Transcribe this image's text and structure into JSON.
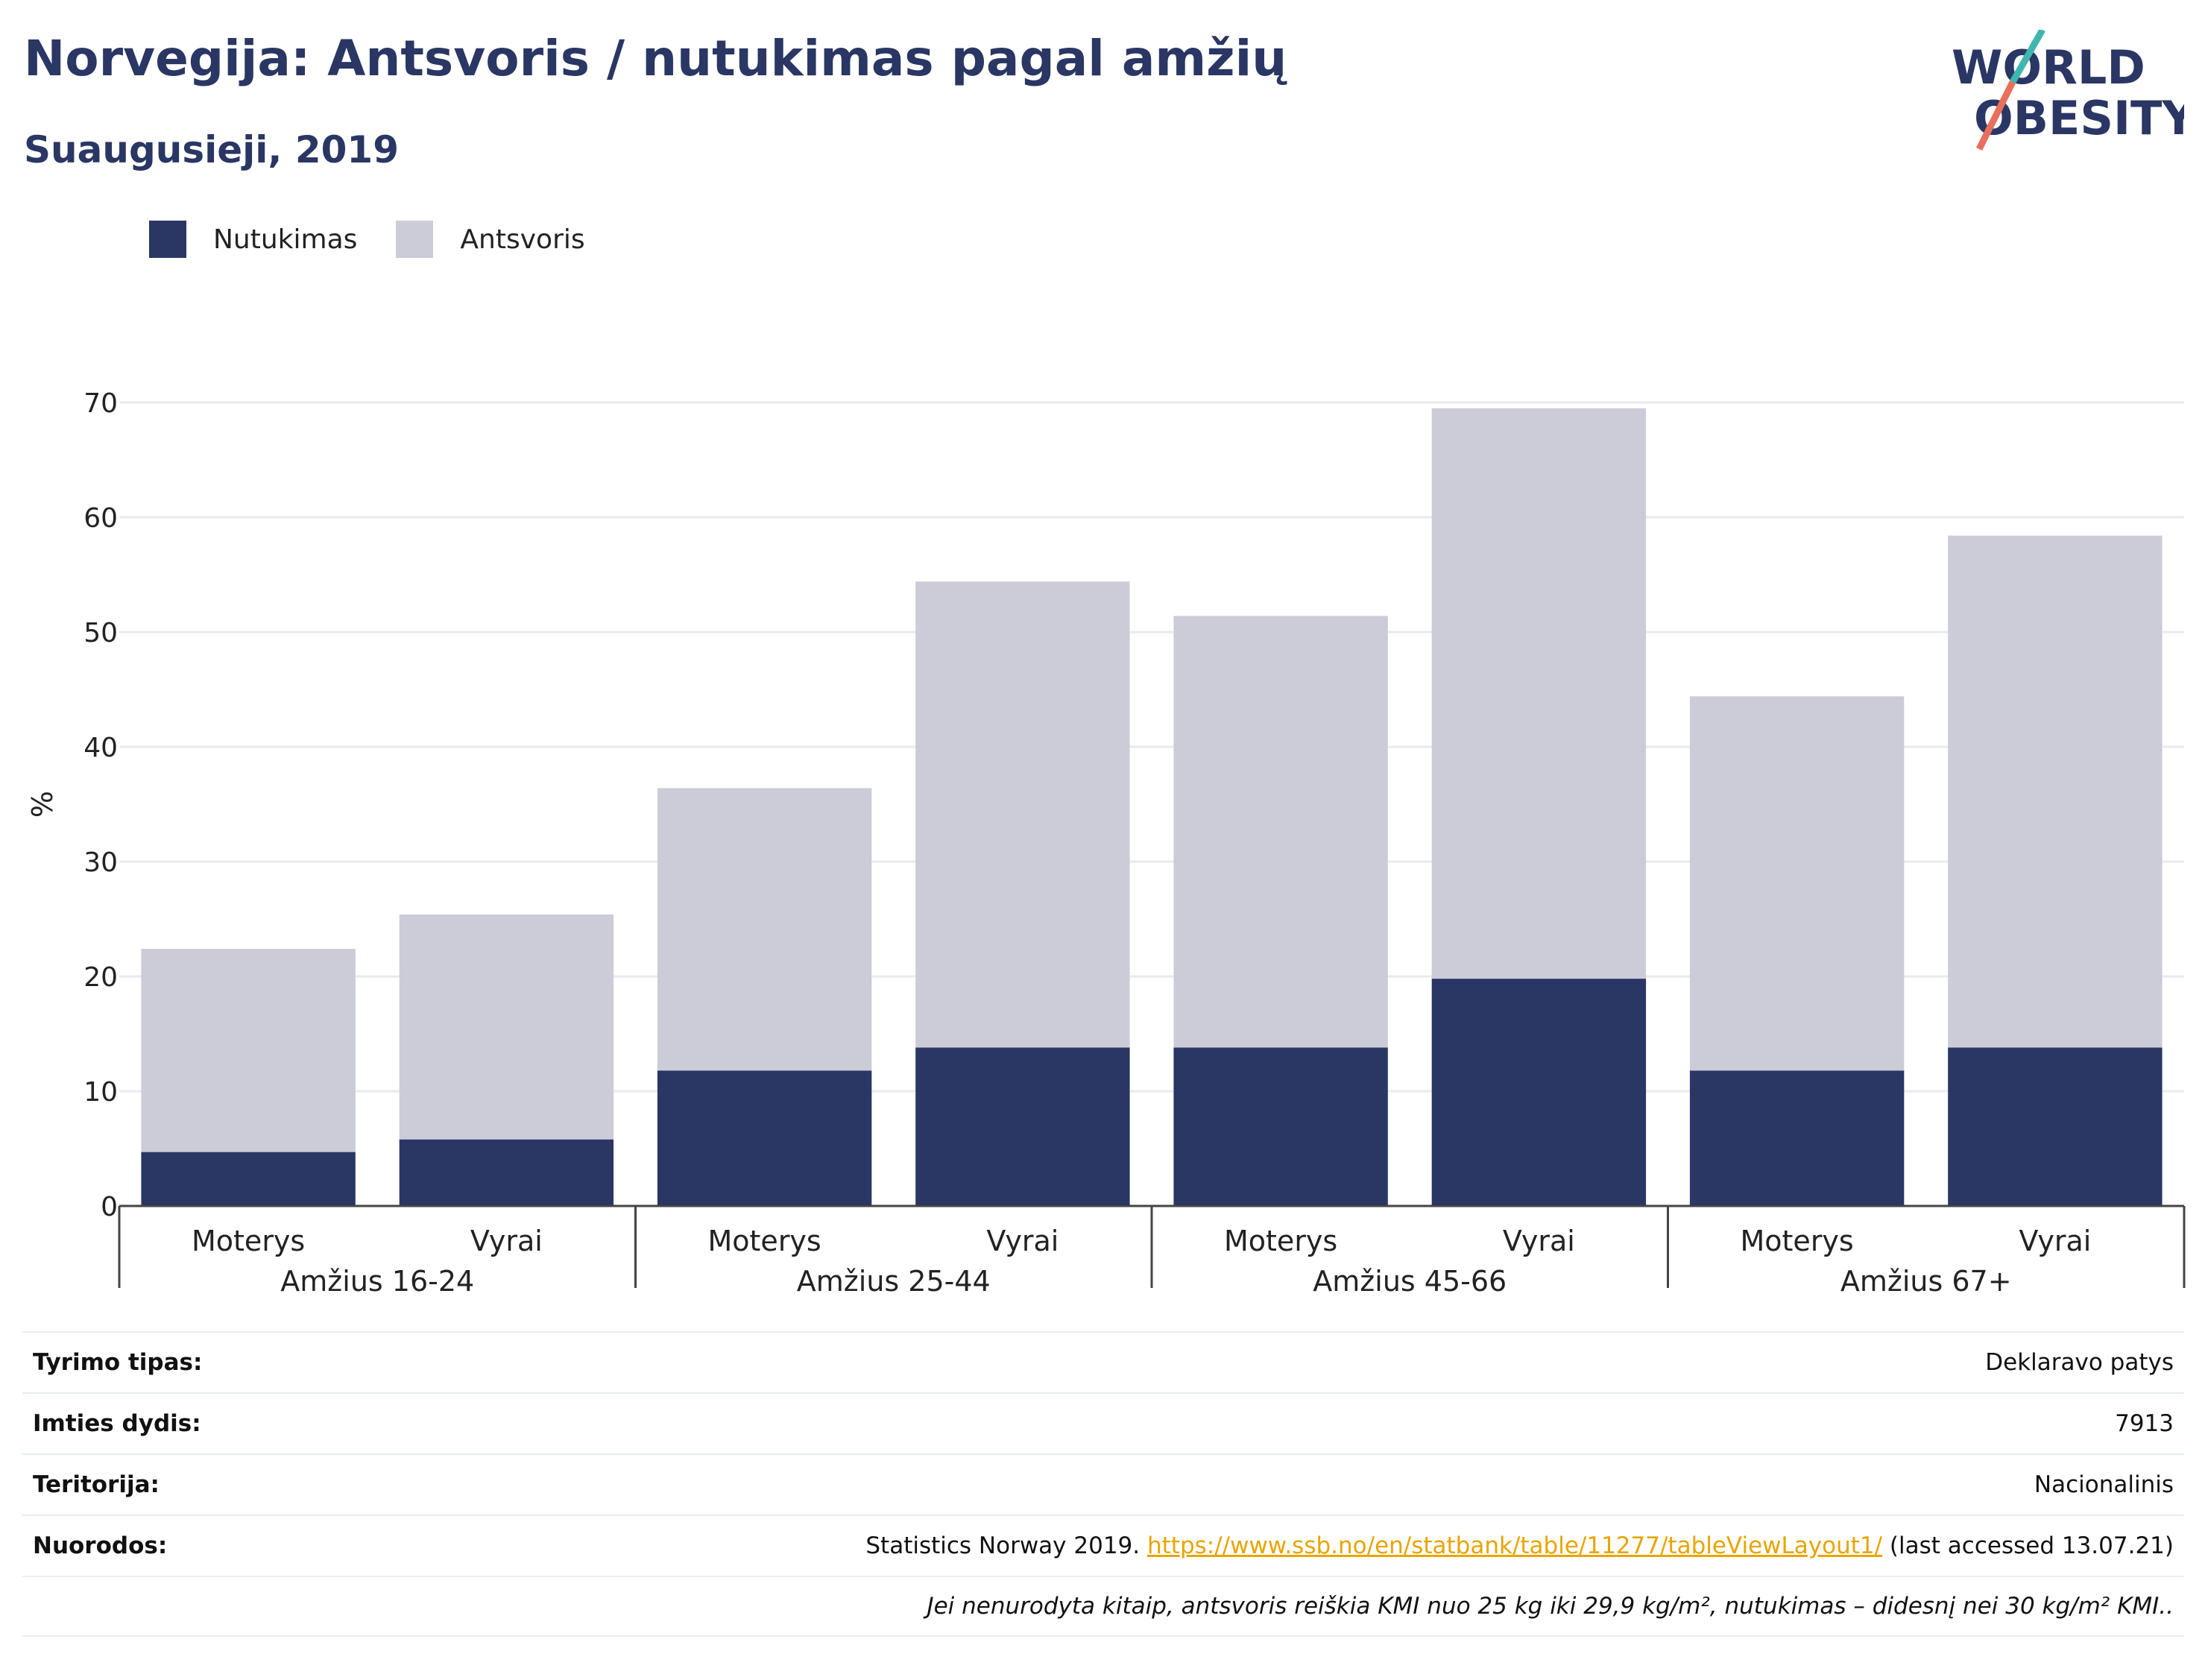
{
  "header": {
    "title": "Norvegija: Antsvoris / nutukimas pagal amžių",
    "subtitle": "Suaugusieji, 2019",
    "logo_line1": "WORLD",
    "logo_line2": "OBESITY"
  },
  "colors": {
    "obesity": "#2a3663",
    "overweight": "#cbccd8",
    "title": "#2a3663",
    "link": "#e8a500",
    "logo_teal": "#3fb7b0",
    "logo_coral": "#e8705c"
  },
  "chart_data": {
    "type": "bar",
    "stacked": true,
    "ylabel": "%",
    "ylim": [
      0,
      70
    ],
    "yticks": [
      0,
      10,
      20,
      30,
      40,
      50,
      60,
      70
    ],
    "grid": true,
    "legend_position": "top-left",
    "groups": [
      "Amžius 16-24",
      "Amžius 25-44",
      "Amžius 45-66",
      "Amžius 67+"
    ],
    "categories": [
      "Moterys",
      "Vyrai",
      "Moterys",
      "Vyrai",
      "Moterys",
      "Vyrai",
      "Moterys",
      "Vyrai"
    ],
    "series": [
      {
        "name": "Nutukimas",
        "values": [
          4.7,
          5.8,
          11.8,
          13.8,
          13.8,
          19.8,
          11.8,
          13.8
        ]
      },
      {
        "name": "Antsvoris",
        "values": [
          17.7,
          19.6,
          24.6,
          40.6,
          37.6,
          49.7,
          32.6,
          44.6
        ]
      }
    ]
  },
  "info": {
    "rows": [
      {
        "label": "Tyrimo tipas:",
        "value": "Deklaravo patys"
      },
      {
        "label": "Imties dydis:",
        "value": "7913"
      },
      {
        "label": "Teritorija:",
        "value": "Nacionalinis"
      }
    ],
    "references_label": "Nuorodos:",
    "references_prefix": "Statistics Norway 2019.",
    "references_link": "https://www.ssb.no/en/statbank/table/11277/tableViewLayout1/",
    "references_suffix": "(last accessed 13.07.21)",
    "note": "Jei nenurodyta kitaip, antsvoris reiškia KMI nuo 25 kg iki 29,9 kg/m², nutukimas – didesnį nei 30 kg/m² KMI.."
  }
}
